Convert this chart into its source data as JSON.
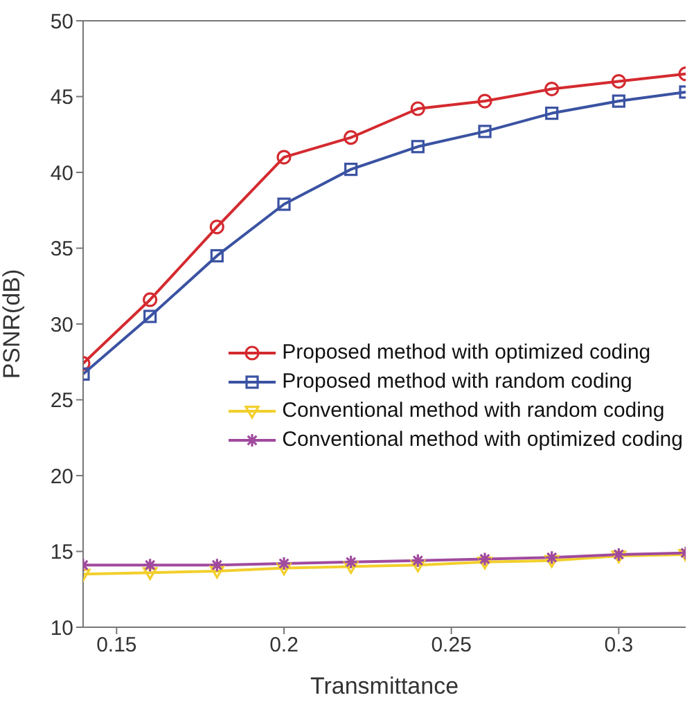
{
  "chart_data": {
    "type": "line",
    "xlabel": "Transmittance",
    "ylabel": "PSNR(dB)",
    "x": [
      0.14,
      0.16,
      0.18,
      0.2,
      0.22,
      0.24,
      0.26,
      0.28,
      0.3,
      0.32
    ],
    "xlim": [
      0.14,
      0.32
    ],
    "xticks": [
      0.15,
      0.2,
      0.25,
      0.3
    ],
    "ylim": [
      10,
      50
    ],
    "yticks": [
      10,
      15,
      20,
      25,
      30,
      35,
      40,
      45,
      50
    ],
    "legend": "right",
    "grid": false,
    "series": [
      {
        "name": "Proposed method with optimized coding",
        "color": "#d42a2f",
        "marker": "circle",
        "values": [
          27.4,
          31.6,
          36.4,
          41.0,
          42.3,
          44.2,
          44.7,
          45.5,
          46.0,
          46.5
        ]
      },
      {
        "name": "Proposed method with random coding",
        "color": "#3a52a2",
        "marker": "square",
        "values": [
          26.7,
          30.5,
          34.5,
          37.9,
          40.2,
          41.7,
          42.7,
          43.9,
          44.7,
          45.3
        ]
      },
      {
        "name": "Conventional method with random coding",
        "color": "#f2cf2c",
        "marker": "triangle",
        "values": [
          13.5,
          13.6,
          13.7,
          13.9,
          14.0,
          14.1,
          14.3,
          14.4,
          14.7,
          14.8
        ]
      },
      {
        "name": "Conventional method with optimized coding",
        "color": "#a04a9e",
        "marker": "cross",
        "values": [
          14.1,
          14.1,
          14.1,
          14.2,
          14.3,
          14.4,
          14.5,
          14.6,
          14.8,
          14.9
        ]
      }
    ]
  }
}
